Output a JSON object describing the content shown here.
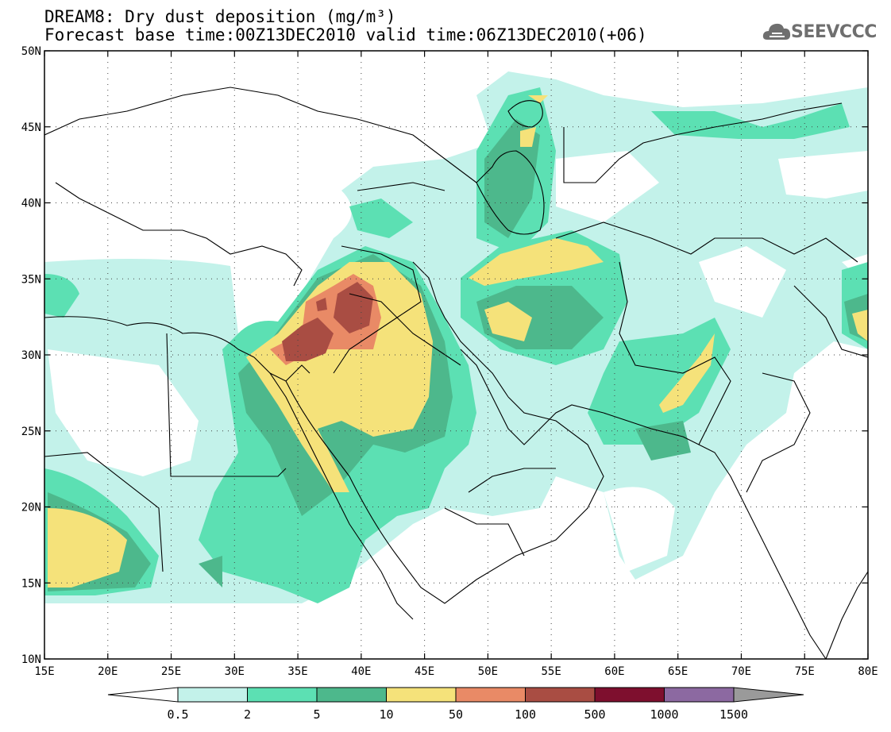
{
  "title": {
    "line1": "DREAM8: Dry dust deposition (mg/m³)",
    "line2": "Forecast base time:00Z13DEC2010 valid time:06Z13DEC2010(+06)"
  },
  "logo": {
    "text": "SEEVCCC",
    "icon": "cloud-icon"
  },
  "map": {
    "lon_range": [
      15,
      80
    ],
    "lat_range": [
      10,
      50
    ],
    "lon_ticks": [
      15,
      20,
      25,
      30,
      35,
      40,
      45,
      50,
      55,
      60,
      65,
      70,
      75,
      80
    ],
    "lon_labels": [
      "15E",
      "20E",
      "25E",
      "30E",
      "35E",
      "40E",
      "45E",
      "50E",
      "55E",
      "60E",
      "65E",
      "70E",
      "75E",
      "80E"
    ],
    "lat_ticks": [
      10,
      15,
      20,
      25,
      30,
      35,
      40,
      45,
      50
    ],
    "lat_labels": [
      "10N",
      "15N",
      "20N",
      "25N",
      "30N",
      "35N",
      "40N",
      "45N",
      "50N"
    ],
    "grid": "dotted"
  },
  "colorbar": {
    "thresholds": [
      "0.5",
      "2",
      "5",
      "10",
      "50",
      "100",
      "500",
      "1000",
      "1500"
    ],
    "colors": [
      "#ffffff",
      "#c3f2ea",
      "#5ce0b3",
      "#4db88c",
      "#f5e27a",
      "#e98a66",
      "#a94d43",
      "#7e0f2e",
      "#8c69a1",
      "#9a9a9a"
    ]
  }
}
